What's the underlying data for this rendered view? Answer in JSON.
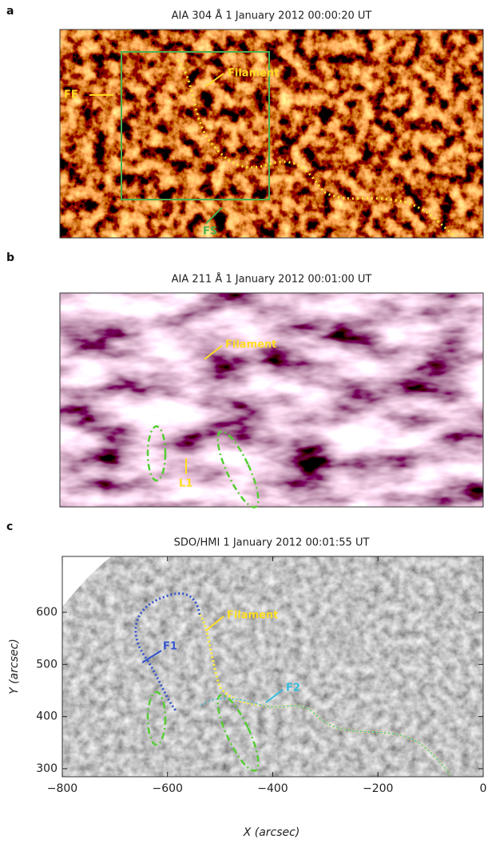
{
  "panels": [
    {
      "label": "a",
      "title": "AIA 304 Å 1 January 2012 00:00:20 UT",
      "annotations": [
        "Filament",
        "FE",
        "FS"
      ]
    },
    {
      "label": "b",
      "title": "AIA 211 Å 1 January 2012 00:01:00 UT",
      "annotations": [
        "Filament",
        "L1"
      ]
    },
    {
      "label": "c",
      "title": "SDO/HMI 1 January 2012 00:01:55 UT",
      "annotations": [
        "Filament",
        "F1",
        "F2"
      ]
    }
  ],
  "axes": {
    "x_label": "X (arcsec)",
    "y_label": "Y (arcsec)",
    "x_ticks": [
      "−800",
      "−600",
      "−400",
      "−200",
      "0"
    ],
    "y_ticks": [
      "600",
      "500",
      "400",
      "300"
    ]
  }
}
